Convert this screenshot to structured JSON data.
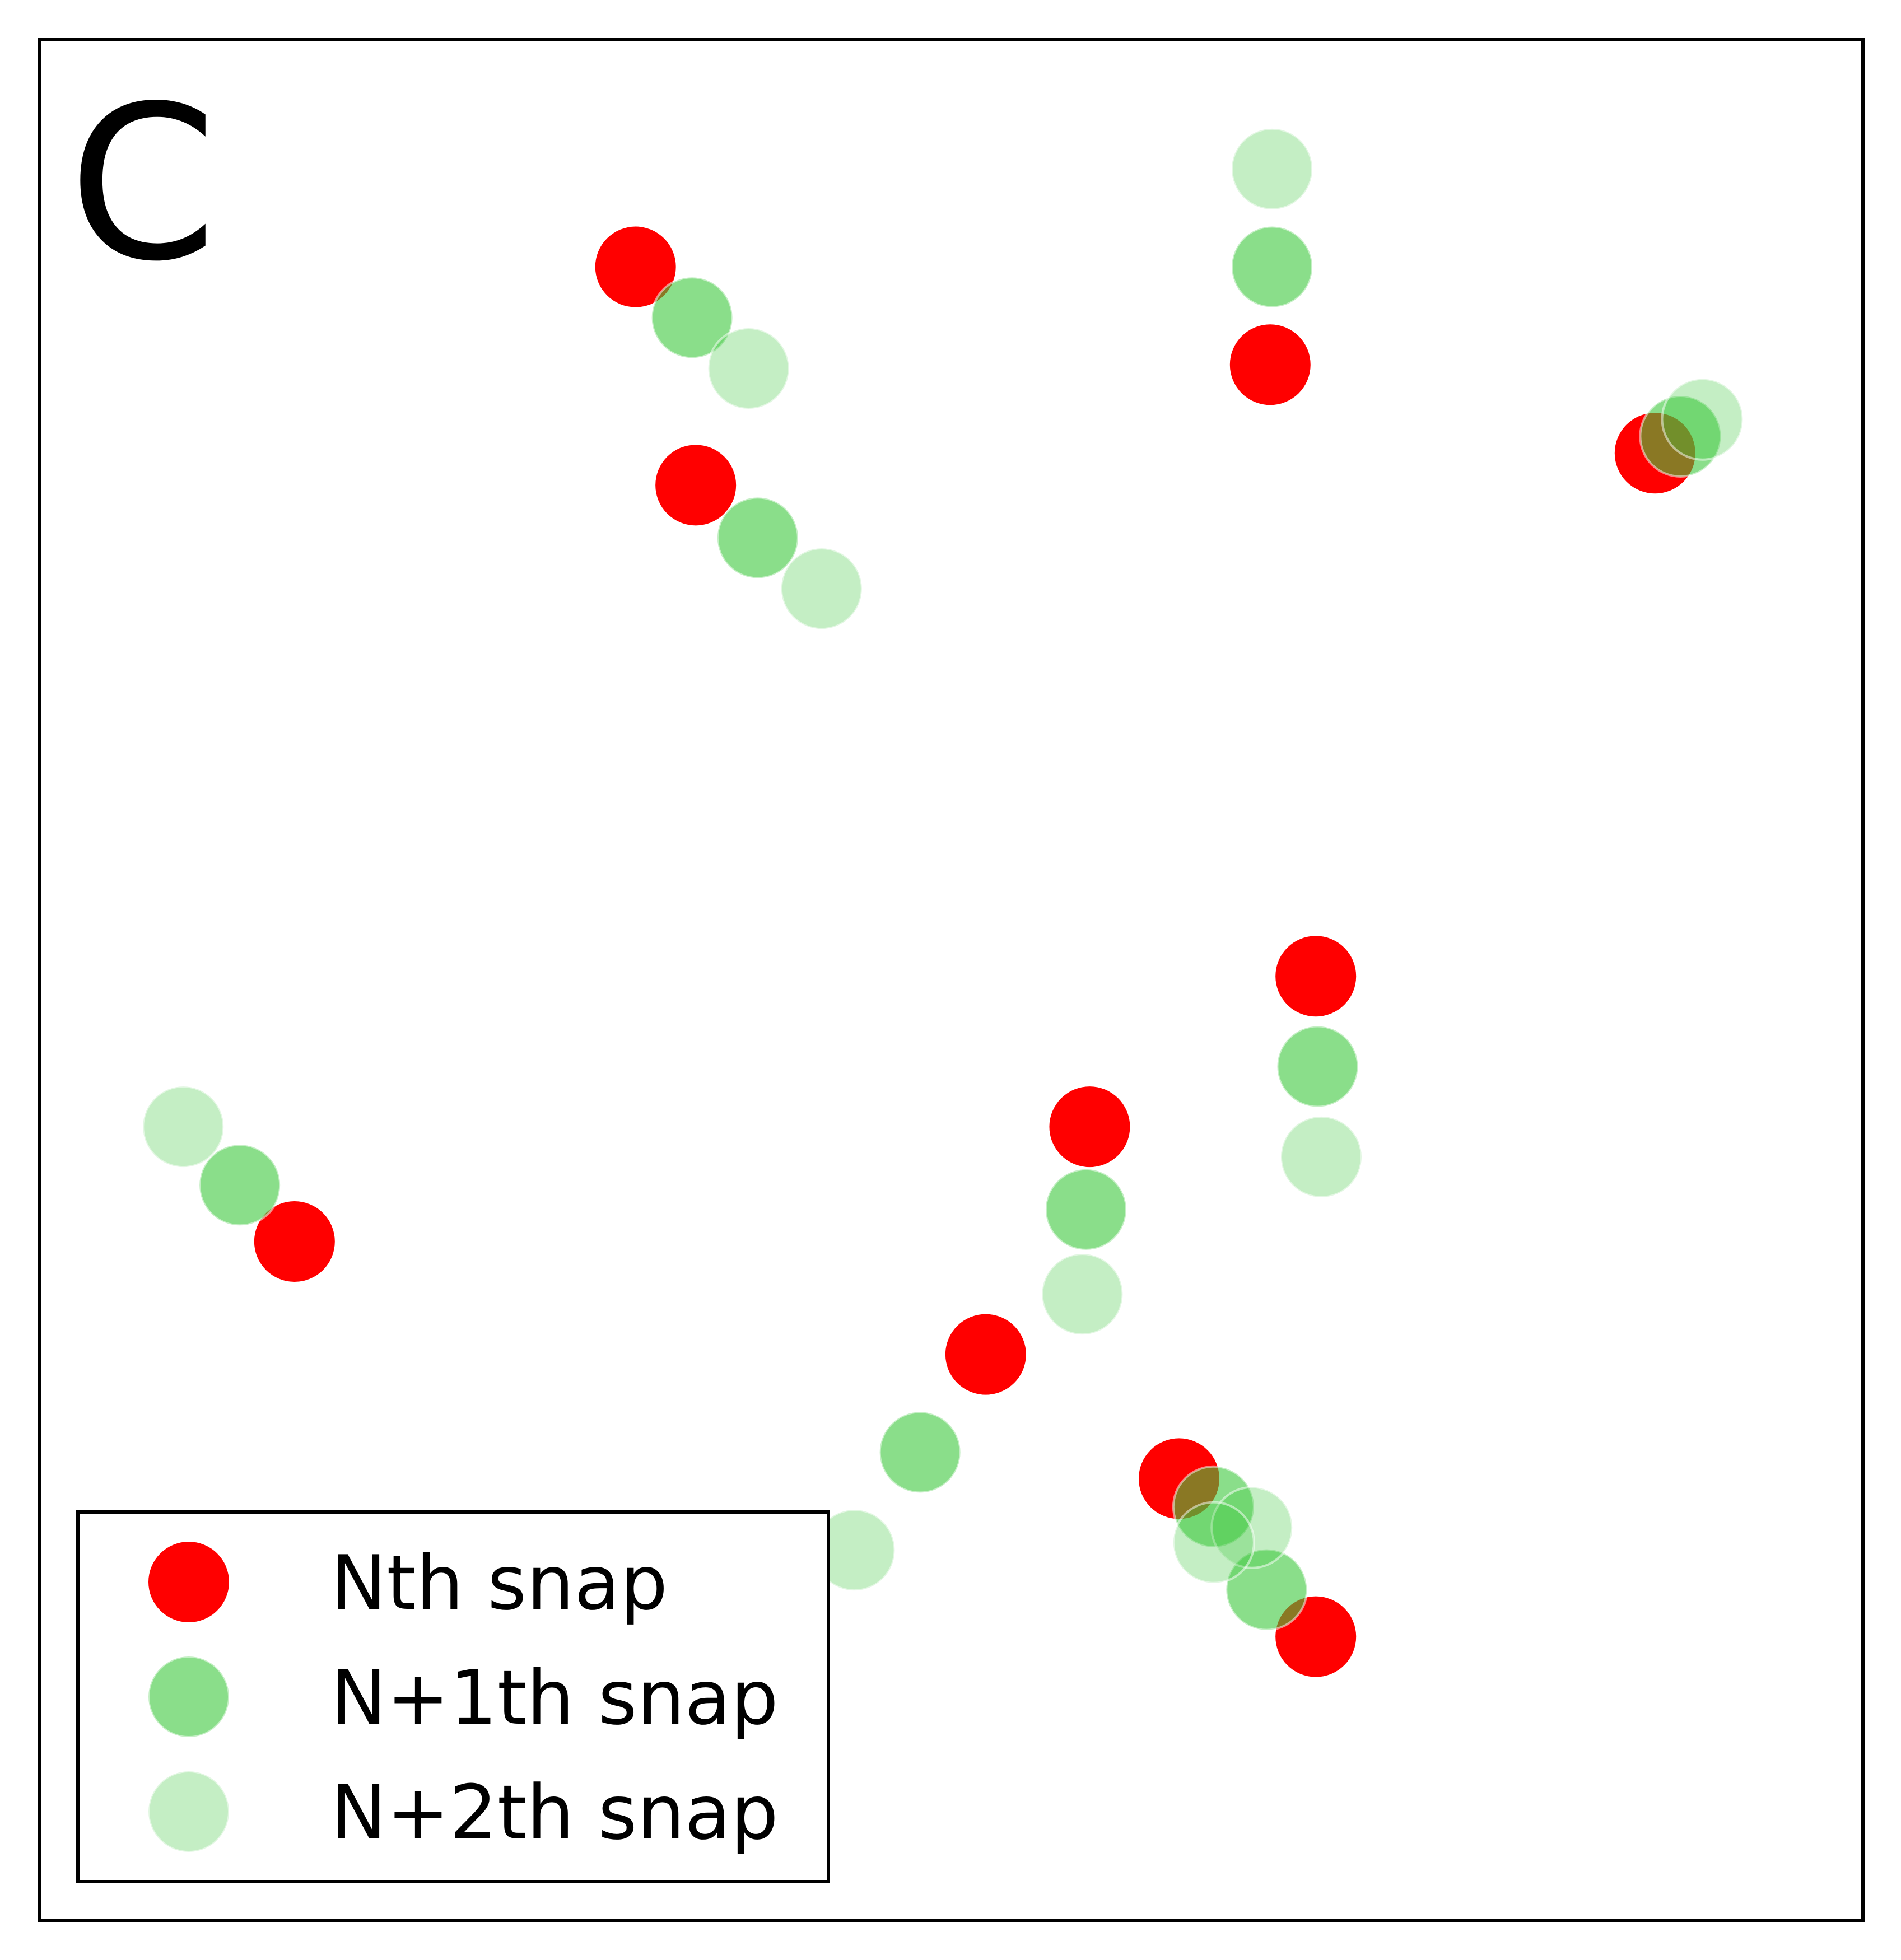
{
  "chart_data": {
    "type": "scatter",
    "panel_label": "C",
    "title": "",
    "xlabel": "",
    "ylabel": "",
    "xlim": [
      0,
      100
    ],
    "ylim": [
      0,
      100
    ],
    "axes_ticks": "none",
    "grid": false,
    "legend_position": "bottom-left",
    "series": [
      {
        "name": "Nth snap",
        "color": "#ff0000",
        "alpha": 1.0,
        "points": [
          {
            "x": 32.7,
            "y": 87.9
          },
          {
            "x": 67.5,
            "y": 82.7
          },
          {
            "x": 36.0,
            "y": 76.3
          },
          {
            "x": 88.6,
            "y": 78.0
          },
          {
            "x": 70.0,
            "y": 50.2
          },
          {
            "x": 57.6,
            "y": 42.2
          },
          {
            "x": 14.0,
            "y": 36.1
          },
          {
            "x": 51.9,
            "y": 30.1
          },
          {
            "x": 62.5,
            "y": 23.5
          },
          {
            "x": 70.0,
            "y": 15.1
          }
        ]
      },
      {
        "name": "N+1th snap",
        "color": "#3cc83c",
        "alpha": 0.6,
        "points": [
          {
            "x": 35.8,
            "y": 85.2
          },
          {
            "x": 67.6,
            "y": 87.9
          },
          {
            "x": 39.4,
            "y": 73.5
          },
          {
            "x": 90.0,
            "y": 78.9
          },
          {
            "x": 70.1,
            "y": 45.4
          },
          {
            "x": 57.4,
            "y": 37.8
          },
          {
            "x": 11.0,
            "y": 39.1
          },
          {
            "x": 48.3,
            "y": 24.9
          },
          {
            "x": 64.4,
            "y": 22.0
          },
          {
            "x": 67.3,
            "y": 17.6
          }
        ]
      },
      {
        "name": "N+2th snap",
        "color": "#3cc83c",
        "alpha": 0.3,
        "points": [
          {
            "x": 38.9,
            "y": 82.5
          },
          {
            "x": 67.6,
            "y": 93.1
          },
          {
            "x": 42.9,
            "y": 70.8
          },
          {
            "x": 91.2,
            "y": 79.8
          },
          {
            "x": 70.3,
            "y": 40.6
          },
          {
            "x": 57.2,
            "y": 33.3
          },
          {
            "x": 7.9,
            "y": 42.2
          },
          {
            "x": 44.7,
            "y": 19.7
          },
          {
            "x": 66.5,
            "y": 20.9
          },
          {
            "x": 64.4,
            "y": 20.1
          }
        ]
      }
    ]
  }
}
